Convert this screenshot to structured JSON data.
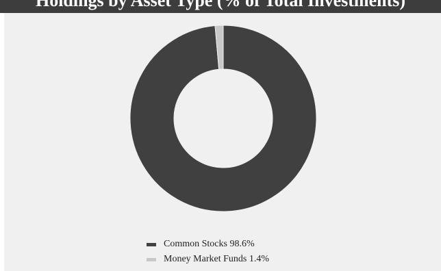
{
  "header": {
    "title": "Holdings by Asset Type (% of Total Investments)"
  },
  "chart_data": {
    "type": "pie",
    "subtype": "donut",
    "title": "Holdings by Asset Type (% of Total Investments)",
    "slices": [
      {
        "name": "Common Stocks",
        "label": "Common Stocks 98.6%",
        "value": 98.6,
        "color": "#404040"
      },
      {
        "name": "Money Market Funds",
        "label": "Money Market Funds 1.4%",
        "value": 1.4,
        "color": "#c8c8c8"
      }
    ],
    "legend_position": "bottom-center"
  }
}
